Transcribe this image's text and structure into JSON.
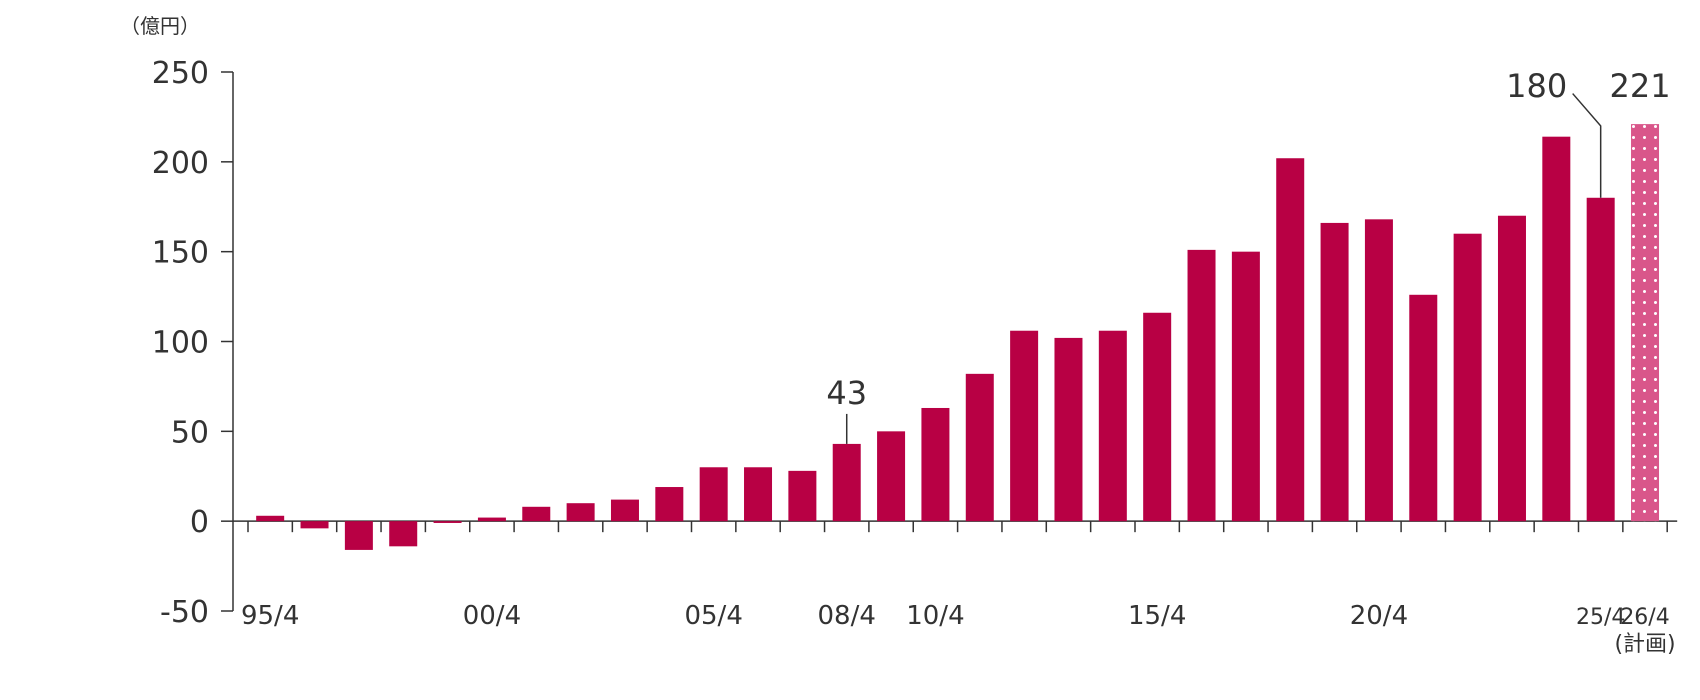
{
  "chart_data": {
    "type": "bar",
    "unit_label": "（億円）",
    "ylim": [
      -50,
      250
    ],
    "yticks": [
      "250",
      "200",
      "150",
      "100",
      "50",
      "0",
      "-50"
    ],
    "negative_tick_color": "#b8003f",
    "bar_color": "#b80044",
    "plan_color": "#d9568a",
    "values": [
      3,
      -4,
      -16,
      -14,
      -1,
      2,
      8,
      10,
      12,
      19,
      30,
      30,
      28,
      43,
      50,
      63,
      82,
      106,
      102,
      106,
      116,
      151,
      150,
      202,
      166,
      168,
      126,
      160,
      170,
      214,
      180,
      221
    ],
    "x_tick_labels": [
      {
        "index": 0,
        "label": "95/4"
      },
      {
        "index": 5,
        "label": "00/4"
      },
      {
        "index": 10,
        "label": "05/4"
      },
      {
        "index": 13,
        "label": "08/4"
      },
      {
        "index": 15,
        "label": "10/4"
      },
      {
        "index": 20,
        "label": "15/4"
      },
      {
        "index": 25,
        "label": "20/4"
      },
      {
        "index": 30,
        "label": "25/4"
      },
      {
        "index": 31,
        "label": "26/4",
        "sublabel": "(計画)"
      }
    ],
    "annotations": [
      {
        "index": 13,
        "label": "43"
      },
      {
        "index": 30,
        "label": "180"
      },
      {
        "index": 31,
        "label": "221"
      }
    ]
  }
}
